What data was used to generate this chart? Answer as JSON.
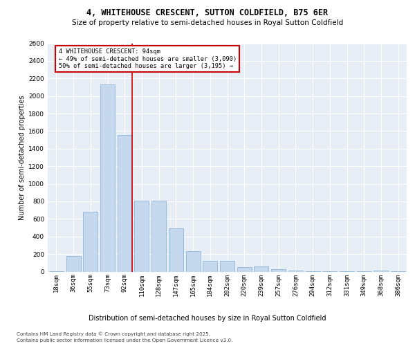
{
  "title": "4, WHITEHOUSE CRESCENT, SUTTON COLDFIELD, B75 6ER",
  "subtitle": "Size of property relative to semi-detached houses in Royal Sutton Coldfield",
  "xlabel": "Distribution of semi-detached houses by size in Royal Sutton Coldfield",
  "ylabel": "Number of semi-detached properties",
  "footer_line1": "Contains HM Land Registry data © Crown copyright and database right 2025.",
  "footer_line2": "Contains public sector information licensed under the Open Government Licence v3.0.",
  "categories": [
    "18sqm",
    "36sqm",
    "55sqm",
    "73sqm",
    "92sqm",
    "110sqm",
    "128sqm",
    "147sqm",
    "165sqm",
    "184sqm",
    "202sqm",
    "220sqm",
    "239sqm",
    "257sqm",
    "276sqm",
    "294sqm",
    "312sqm",
    "331sqm",
    "349sqm",
    "368sqm",
    "386sqm"
  ],
  "values": [
    5,
    180,
    680,
    2130,
    1560,
    810,
    810,
    490,
    230,
    125,
    125,
    50,
    60,
    30,
    10,
    5,
    5,
    2,
    2,
    10,
    2
  ],
  "bar_color": "#c5d8ed",
  "bar_edge_color": "#7bafd4",
  "annotation_box_text": "4 WHITEHOUSE CRESCENT: 94sqm\n← 49% of semi-detached houses are smaller (3,090)\n50% of semi-detached houses are larger (3,195) →",
  "vline_x_index": 4,
  "vline_color": "#cc0000",
  "ylim": [
    0,
    2600
  ],
  "yticks": [
    0,
    200,
    400,
    600,
    800,
    1000,
    1200,
    1400,
    1600,
    1800,
    2000,
    2200,
    2400,
    2600
  ],
  "annotation_box_color": "#cc0000",
  "plot_bg_color": "#e8eef5"
}
